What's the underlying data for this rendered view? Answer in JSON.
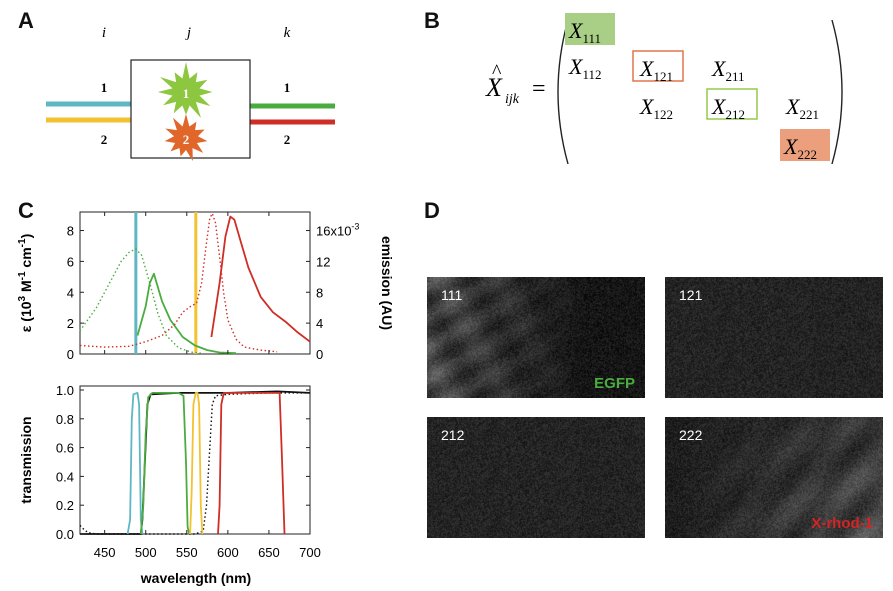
{
  "panels": {
    "a": "A",
    "b": "B",
    "c": "C",
    "d": "D"
  },
  "panel_a": {
    "index_labels": [
      "i",
      "j",
      "k"
    ],
    "left_channels": [
      "1",
      "2"
    ],
    "right_channels": [
      "1",
      "2"
    ],
    "fluorophores": [
      "1",
      "2"
    ],
    "colors": {
      "cyan": "#5fb7c3",
      "yellow": "#f2c230",
      "green": "#4aac3f",
      "red": "#cf2d25",
      "star1": "#8dc63f",
      "star2": "#e0662a"
    }
  },
  "panel_b": {
    "lhs_base": "X",
    "lhs_hat": "^",
    "lhs_sub": "ijk",
    "equals": "=",
    "elements": [
      {
        "base": "X",
        "sub": "111",
        "highlight": "green-fill"
      },
      {
        "base": "X",
        "sub": "112",
        "highlight": "none"
      },
      {
        "base": "X",
        "sub": "121",
        "highlight": "orange-box"
      },
      {
        "base": "X",
        "sub": "211",
        "highlight": "none"
      },
      {
        "base": "X",
        "sub": "122",
        "highlight": "none"
      },
      {
        "base": "X",
        "sub": "212",
        "highlight": "green-box"
      },
      {
        "base": "X",
        "sub": "221",
        "highlight": "none"
      },
      {
        "base": "X",
        "sub": "222",
        "highlight": "orange-fill"
      }
    ]
  },
  "chart_data": [
    {
      "type": "line",
      "ylabel_left_parts": [
        "ε (10",
        "3",
        " M",
        "-1",
        " cm",
        "-1",
        ")"
      ],
      "ylabel_right": "emission (AU)",
      "yticks_left": [
        "0",
        "2",
        "4",
        "6",
        "8"
      ],
      "yticks_right": [
        "0",
        "4",
        "8",
        "12",
        "16x10",
        "-3"
      ],
      "ylim_left": [
        0,
        9.2
      ],
      "ylim_right": [
        0,
        0.0184
      ],
      "xlim": [
        420,
        700
      ],
      "excitation_lines": [
        {
          "x": 488,
          "color": "#5fb7c3"
        },
        {
          "x": 561,
          "color": "#f2c230"
        }
      ],
      "series": [
        {
          "color": "#4aac3f",
          "style": "dotted",
          "axis": "left",
          "points": [
            [
              420,
              1.5
            ],
            [
              440,
              3.0
            ],
            [
              460,
              5.0
            ],
            [
              470,
              6.0
            ],
            [
              480,
              6.6
            ],
            [
              488,
              6.8
            ],
            [
              495,
              6.4
            ],
            [
              505,
              4.6
            ],
            [
              515,
              2.6
            ],
            [
              525,
              1.2
            ],
            [
              540,
              0.4
            ],
            [
              555,
              0.12
            ],
            [
              570,
              0.03
            ]
          ]
        },
        {
          "color": "#4aac3f",
          "style": "solid",
          "axis": "right",
          "points": [
            [
              490,
              0.0024
            ],
            [
              500,
              0.0062
            ],
            [
              505,
              0.0092
            ],
            [
              510,
              0.0104
            ],
            [
              515,
              0.0086
            ],
            [
              520,
              0.0068
            ],
            [
              530,
              0.0044
            ],
            [
              545,
              0.0022
            ],
            [
              560,
              0.0011
            ],
            [
              575,
              0.0005
            ],
            [
              590,
              0.0002
            ],
            [
              610,
              0.0001
            ]
          ]
        },
        {
          "color": "#cf2d25",
          "style": "dotted",
          "axis": "left",
          "points": [
            [
              420,
              0.55
            ],
            [
              450,
              0.45
            ],
            [
              480,
              0.5
            ],
            [
              500,
              0.8
            ],
            [
              520,
              1.2
            ],
            [
              535,
              1.9
            ],
            [
              545,
              2.7
            ],
            [
              555,
              3.1
            ],
            [
              562,
              3.3
            ],
            [
              568,
              4.6
            ],
            [
              573,
              6.8
            ],
            [
              578,
              8.8
            ],
            [
              581,
              9.1
            ],
            [
              585,
              8.5
            ],
            [
              590,
              6.3
            ],
            [
              595,
              3.9
            ],
            [
              600,
              2.2
            ],
            [
              610,
              0.95
            ],
            [
              620,
              0.45
            ],
            [
              640,
              0.25
            ],
            [
              660,
              0.14
            ]
          ]
        },
        {
          "color": "#cf2d25",
          "style": "solid",
          "axis": "right",
          "points": [
            [
              580,
              0.0022
            ],
            [
              590,
              0.0092
            ],
            [
              597,
              0.0152
            ],
            [
              603,
              0.0178
            ],
            [
              608,
              0.0174
            ],
            [
              615,
              0.0148
            ],
            [
              625,
              0.0112
            ],
            [
              640,
              0.0074
            ],
            [
              655,
              0.0054
            ],
            [
              670,
              0.0042
            ],
            [
              685,
              0.0028
            ],
            [
              700,
              0.0016
            ]
          ]
        }
      ]
    },
    {
      "type": "line",
      "xlabel": "wavelength (nm)",
      "ylabel": "transmission",
      "xticks": [
        "450",
        "500",
        "550",
        "600",
        "650",
        "700"
      ],
      "yticks": [
        "0.0",
        "0.2",
        "0.4",
        "0.6",
        "0.8",
        "1.0"
      ],
      "xlim": [
        420,
        700
      ],
      "ylim": [
        0,
        1.0
      ],
      "series": [
        {
          "color": "#111111",
          "style": "dotted",
          "axis": "left",
          "points": [
            [
              420,
              0.06
            ],
            [
              425,
              0.03
            ],
            [
              430,
              0.01
            ],
            [
              440,
              0.0
            ],
            [
              560,
              0.0
            ],
            [
              570,
              0.02
            ],
            [
              574,
              0.2
            ],
            [
              578,
              0.6
            ],
            [
              581,
              0.9
            ],
            [
              585,
              0.96
            ],
            [
              600,
              0.97
            ],
            [
              650,
              0.98
            ],
            [
              700,
              0.98
            ]
          ]
        },
        {
          "color": "#111111",
          "style": "solid",
          "axis": "left",
          "points": [
            [
              420,
              0.0
            ],
            [
              494,
              0.0
            ],
            [
              496,
              0.1
            ],
            [
              499,
              0.5
            ],
            [
              502,
              0.9
            ],
            [
              506,
              0.97
            ],
            [
              540,
              0.98
            ],
            [
              600,
              0.98
            ],
            [
              660,
              0.99
            ],
            [
              700,
              0.98
            ]
          ]
        },
        {
          "color": "#5fb7c3",
          "style": "solid",
          "axis": "left",
          "points": [
            [
              478,
              0.0
            ],
            [
              481,
              0.1
            ],
            [
              483,
              0.8
            ],
            [
              485,
              0.97
            ],
            [
              490,
              0.98
            ],
            [
              492,
              0.9
            ],
            [
              494,
              0.1
            ],
            [
              496,
              0.0
            ]
          ]
        },
        {
          "color": "#4aac3f",
          "style": "solid",
          "axis": "left",
          "points": [
            [
              494,
              0.0
            ],
            [
              497,
              0.2
            ],
            [
              500,
              0.7
            ],
            [
              503,
              0.95
            ],
            [
              508,
              0.98
            ],
            [
              540,
              0.98
            ],
            [
              546,
              0.96
            ],
            [
              549,
              0.5
            ],
            [
              551,
              0.05
            ],
            [
              553,
              0.0
            ]
          ]
        },
        {
          "color": "#f2c230",
          "style": "solid",
          "axis": "left",
          "points": [
            [
              554,
              0.0
            ],
            [
              556,
              0.3
            ],
            [
              558,
              0.9
            ],
            [
              561,
              0.98
            ],
            [
              563,
              0.98
            ],
            [
              565,
              0.9
            ],
            [
              567,
              0.2
            ],
            [
              569,
              0.0
            ]
          ]
        },
        {
          "color": "#cf2d25",
          "style": "solid",
          "axis": "left",
          "points": [
            [
              588,
              0.0
            ],
            [
              590,
              0.2
            ],
            [
              592,
              0.9
            ],
            [
              595,
              0.98
            ],
            [
              640,
              0.98
            ],
            [
              663,
              0.98
            ],
            [
              666,
              0.5
            ],
            [
              669,
              0.0
            ]
          ]
        }
      ]
    }
  ],
  "panel_d": {
    "tiles": [
      {
        "label": "111",
        "tag": "EGFP",
        "tag_color": "#4aac3f",
        "brightness": "bright-left"
      },
      {
        "label": "121",
        "tag": "",
        "tag_color": "#ffffff",
        "brightness": "noise"
      },
      {
        "label": "212",
        "tag": "",
        "tag_color": "#ffffff",
        "brightness": "noise"
      },
      {
        "label": "222",
        "tag": "X-rhod-1",
        "tag_color": "#d42424",
        "brightness": "bright-right"
      }
    ]
  }
}
